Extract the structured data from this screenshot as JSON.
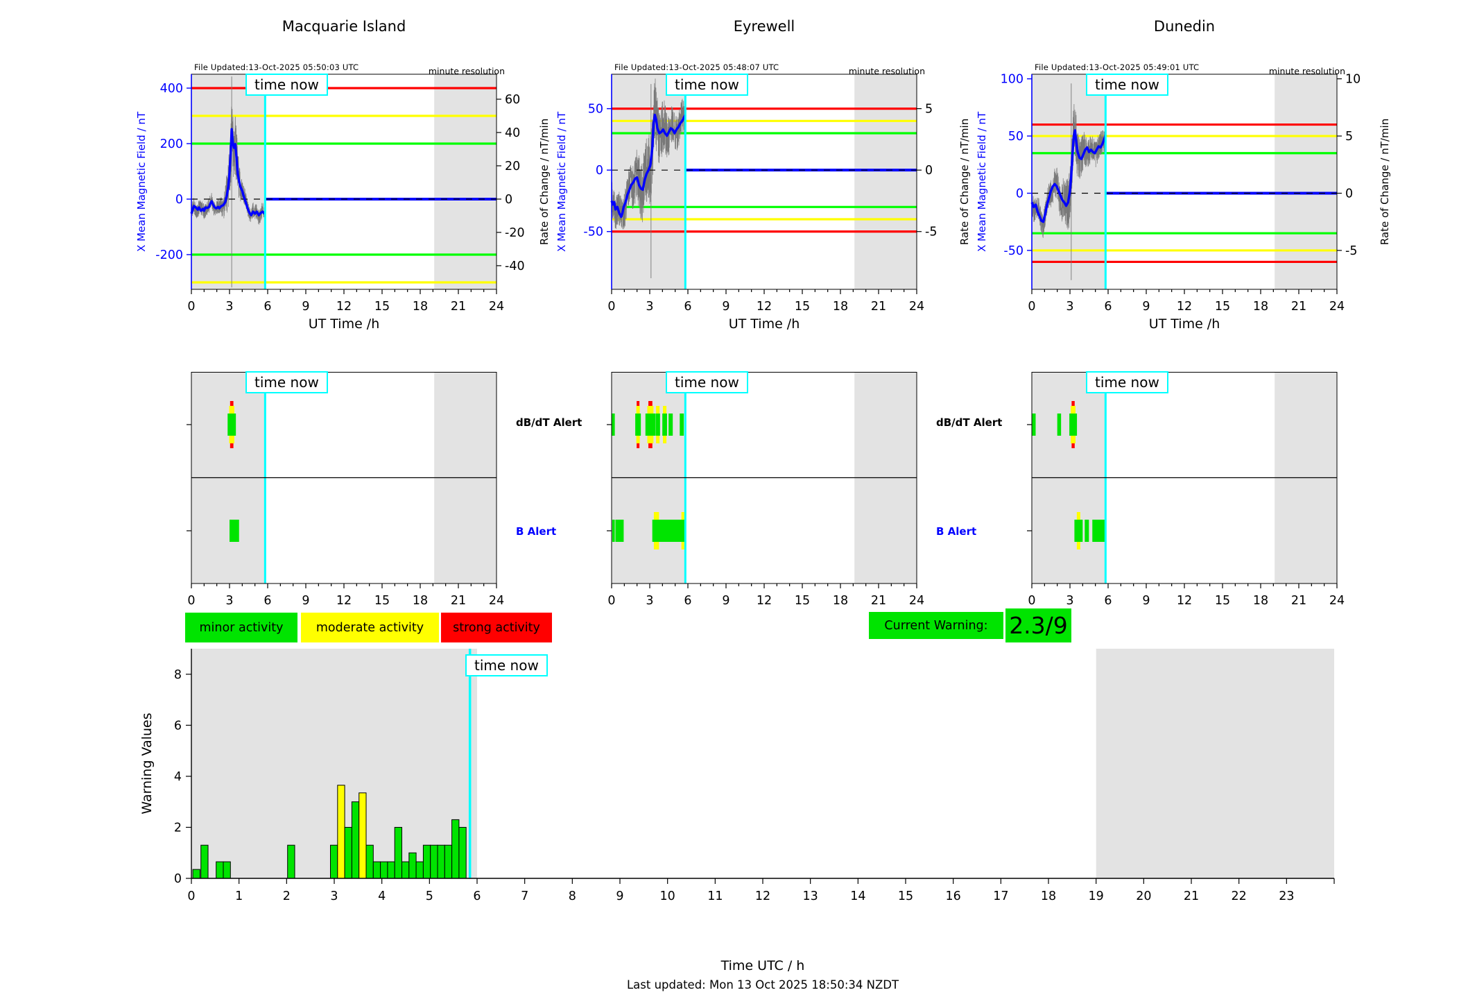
{
  "figure": {
    "time_now_label": "time now",
    "last_updated": "Last updated: Mon 13 Oct 2025 18:50:34 NZDT",
    "alert_labels": {
      "dbdt": "dB/dT Alert",
      "b": "B Alert"
    },
    "legend": [
      {
        "label": "minor activity",
        "color": "#00e400"
      },
      {
        "label": "moderate activity",
        "color": "#ffff00"
      },
      {
        "label": "strong activity",
        "color": "#ff0000"
      }
    ],
    "current_warning": {
      "label": "Current Warning:",
      "value": "2.3/9",
      "color": "#00e400"
    }
  },
  "colors": {
    "minor_green": "#00e400",
    "moderate_yellow": "#ffff00",
    "strong_red": "#ff0000",
    "data_blue": "#0000ff",
    "time_now_cyan": "#00ffff",
    "shaded_band": "#e3e3e3",
    "raw_trace_gray": "#787878"
  },
  "chart_data": [
    {
      "type": "line",
      "title": "Macquarie Island",
      "file_updated": "File Updated:13-Oct-2025 05:50:03 UTC",
      "resolution_note": "minute resolution",
      "xlabel": "UT Time /h",
      "ylabel_left": "X Mean Magnetic Field / nT",
      "ylabel_right": "Rate of Change / nT/min",
      "xlim": [
        0,
        24
      ],
      "xticks": [
        0,
        3,
        6,
        9,
        12,
        15,
        18,
        21,
        24
      ],
      "ylim_left": [
        -325,
        450
      ],
      "yticks_left": [
        400,
        200,
        0,
        -200
      ],
      "ylim_right": [
        -54.2,
        75
      ],
      "yticks_right": [
        60,
        40,
        20,
        0,
        -20,
        -40
      ],
      "time_now": 5.8,
      "shaded_bands": [
        [
          0,
          5.8
        ],
        [
          19.1,
          24
        ]
      ],
      "thresholds": [
        {
          "value": 400,
          "color": "#ff0000"
        },
        {
          "value": 300,
          "color": "#ffff00"
        },
        {
          "value": 200,
          "color": "#00ff00"
        },
        {
          "value": -200,
          "color": "#00ff00"
        },
        {
          "value": -300,
          "color": "#ffff00"
        }
      ],
      "observed_blue": [
        [
          0,
          -52
        ],
        [
          0.1,
          -38
        ],
        [
          0.2,
          -25
        ],
        [
          0.35,
          -30
        ],
        [
          0.5,
          -38
        ],
        [
          0.6,
          -30
        ],
        [
          0.75,
          -42
        ],
        [
          0.9,
          -35
        ],
        [
          1.0,
          -42
        ],
        [
          1.1,
          -30
        ],
        [
          1.25,
          -32
        ],
        [
          1.4,
          -28
        ],
        [
          1.5,
          -15
        ],
        [
          1.6,
          -8
        ],
        [
          1.7,
          -18
        ],
        [
          1.8,
          -28
        ],
        [
          1.95,
          -33
        ],
        [
          2.1,
          -28
        ],
        [
          2.2,
          -33
        ],
        [
          2.35,
          -25
        ],
        [
          2.5,
          -22
        ],
        [
          2.65,
          -12
        ],
        [
          2.8,
          15
        ],
        [
          2.9,
          45
        ],
        [
          3.0,
          95
        ],
        [
          3.1,
          170
        ],
        [
          3.17,
          252
        ],
        [
          3.25,
          205
        ],
        [
          3.35,
          185
        ],
        [
          3.45,
          198
        ],
        [
          3.55,
          150
        ],
        [
          3.65,
          90
        ],
        [
          3.75,
          65
        ],
        [
          3.85,
          45
        ],
        [
          4.0,
          30
        ],
        [
          4.1,
          12
        ],
        [
          4.25,
          -8
        ],
        [
          4.4,
          -30
        ],
        [
          4.55,
          -48
        ],
        [
          4.7,
          -58
        ],
        [
          4.85,
          -45
        ],
        [
          5.0,
          -52
        ],
        [
          5.15,
          -45
        ],
        [
          5.3,
          -58
        ],
        [
          5.45,
          -50
        ],
        [
          5.6,
          -45
        ],
        [
          5.7,
          -50
        ],
        [
          5.8,
          -46
        ]
      ],
      "forecast_value": 0,
      "noise": {
        "seed": 1,
        "amp": 28,
        "burst_amp": 95,
        "burst_center": 3.25,
        "burst_width": 0.55,
        "spike_t": 3.17,
        "spike_range": [
          -318,
          442
        ]
      }
    },
    {
      "type": "line",
      "title": "Eyrewell",
      "file_updated": "File Updated:13-Oct-2025 05:48:07 UTC",
      "resolution_note": "minute resolution",
      "xlabel": "UT Time /h",
      "ylabel_left": "X Mean Magnetic Field / nT",
      "ylabel_right": "Rate of Change / nT/min",
      "xlim": [
        0,
        24
      ],
      "xticks": [
        0,
        3,
        6,
        9,
        12,
        15,
        18,
        21,
        24
      ],
      "ylim_left": [
        -97,
        78
      ],
      "yticks_left": [
        50,
        0,
        -50
      ],
      "ylim_right": [
        -9.7,
        7.8
      ],
      "yticks_right": [
        5,
        0,
        -5
      ],
      "time_now": 5.8,
      "shaded_bands": [
        [
          0,
          5.8
        ],
        [
          19.1,
          24
        ]
      ],
      "thresholds": [
        {
          "value": 50,
          "color": "#ff0000"
        },
        {
          "value": 40,
          "color": "#ffff00"
        },
        {
          "value": 30,
          "color": "#00ff00"
        },
        {
          "value": -30,
          "color": "#00ff00"
        },
        {
          "value": -40,
          "color": "#ffff00"
        },
        {
          "value": -50,
          "color": "#ff0000"
        }
      ],
      "observed_blue": [
        [
          0,
          -25
        ],
        [
          0.1,
          -28
        ],
        [
          0.2,
          -26
        ],
        [
          0.3,
          -32
        ],
        [
          0.45,
          -30
        ],
        [
          0.6,
          -35
        ],
        [
          0.75,
          -38
        ],
        [
          0.85,
          -35
        ],
        [
          0.95,
          -30
        ],
        [
          1.1,
          -26
        ],
        [
          1.25,
          -20
        ],
        [
          1.4,
          -16
        ],
        [
          1.55,
          -12
        ],
        [
          1.7,
          -10
        ],
        [
          1.85,
          -7
        ],
        [
          2.0,
          -6
        ],
        [
          2.15,
          -12
        ],
        [
          2.3,
          -15
        ],
        [
          2.45,
          -16
        ],
        [
          2.6,
          -8
        ],
        [
          2.75,
          -3
        ],
        [
          2.9,
          0
        ],
        [
          3.05,
          4
        ],
        [
          3.2,
          18
        ],
        [
          3.3,
          38
        ],
        [
          3.4,
          45
        ],
        [
          3.5,
          41
        ],
        [
          3.6,
          34
        ],
        [
          3.75,
          30
        ],
        [
          3.9,
          31
        ],
        [
          4.05,
          33
        ],
        [
          4.2,
          30
        ],
        [
          4.35,
          28
        ],
        [
          4.5,
          31
        ],
        [
          4.65,
          34
        ],
        [
          4.8,
          33
        ],
        [
          4.95,
          30
        ],
        [
          5.1,
          33
        ],
        [
          5.25,
          35
        ],
        [
          5.4,
          38
        ],
        [
          5.55,
          40
        ],
        [
          5.7,
          43
        ],
        [
          5.8,
          45
        ]
      ],
      "forecast_value": 0,
      "noise": {
        "seed": 2,
        "amp": 14,
        "burst_amp": 16,
        "burst_center": 3.1,
        "burst_width": 1.2,
        "spike_t": 3.1,
        "spike_range": [
          -88,
          70
        ]
      }
    },
    {
      "type": "line",
      "title": "Dunedin",
      "file_updated": "File Updated:13-Oct-2025 05:49:01 UTC",
      "resolution_note": "minute resolution",
      "xlabel": "UT Time /h",
      "ylabel_left": "X Mean Magnetic Field / nT",
      "ylabel_right": "Rate of Change / nT/min",
      "xlim": [
        0,
        24
      ],
      "xticks": [
        0,
        3,
        6,
        9,
        12,
        15,
        18,
        21,
        24
      ],
      "ylim_left": [
        -84,
        104
      ],
      "yticks_left": [
        100,
        50,
        0,
        -50
      ],
      "ylim_right": [
        -8.4,
        10.4
      ],
      "yticks_right": [
        10,
        5,
        0,
        -5
      ],
      "time_now": 5.8,
      "shaded_bands": [
        [
          0,
          5.8
        ],
        [
          19.1,
          24
        ]
      ],
      "thresholds": [
        {
          "value": 60,
          "color": "#ff0000"
        },
        {
          "value": 50,
          "color": "#ffff00"
        },
        {
          "value": 35,
          "color": "#00ff00"
        },
        {
          "value": -35,
          "color": "#00ff00"
        },
        {
          "value": -50,
          "color": "#ffff00"
        },
        {
          "value": -60,
          "color": "#ff0000"
        }
      ],
      "observed_blue": [
        [
          0,
          -8
        ],
        [
          0.15,
          -12
        ],
        [
          0.3,
          -10
        ],
        [
          0.45,
          -16
        ],
        [
          0.6,
          -20
        ],
        [
          0.75,
          -24
        ],
        [
          0.9,
          -25
        ],
        [
          1.05,
          -18
        ],
        [
          1.2,
          -10
        ],
        [
          1.35,
          -4
        ],
        [
          1.5,
          2
        ],
        [
          1.65,
          6
        ],
        [
          1.8,
          8
        ],
        [
          1.95,
          6
        ],
        [
          2.1,
          2
        ],
        [
          2.25,
          -2
        ],
        [
          2.4,
          -6
        ],
        [
          2.55,
          -8
        ],
        [
          2.7,
          -11
        ],
        [
          2.85,
          -8
        ],
        [
          3.0,
          2
        ],
        [
          3.1,
          15
        ],
        [
          3.2,
          35
        ],
        [
          3.3,
          50
        ],
        [
          3.4,
          55
        ],
        [
          3.5,
          44
        ],
        [
          3.6,
          36
        ],
        [
          3.75,
          31
        ],
        [
          3.9,
          30
        ],
        [
          4.05,
          34
        ],
        [
          4.2,
          38
        ],
        [
          4.35,
          40
        ],
        [
          4.5,
          36
        ],
        [
          4.65,
          38
        ],
        [
          4.8,
          36
        ],
        [
          4.95,
          35
        ],
        [
          5.1,
          38
        ],
        [
          5.25,
          41
        ],
        [
          5.4,
          40
        ],
        [
          5.55,
          43
        ],
        [
          5.65,
          46
        ],
        [
          5.8,
          51
        ]
      ],
      "forecast_value": 0,
      "noise": {
        "seed": 3,
        "amp": 11,
        "burst_amp": 14,
        "burst_center": 3.1,
        "burst_width": 1.0,
        "spike_t": 3.1,
        "spike_range": [
          -76,
          96
        ]
      }
    },
    {
      "type": "alert",
      "station": "Macquarie Island",
      "xlim": [
        0,
        24
      ],
      "xticks": [
        0,
        3,
        6,
        9,
        12,
        15,
        18,
        21,
        24
      ],
      "time_now": 5.8,
      "shaded_bands": [
        [
          0,
          5.8
        ],
        [
          19.1,
          24
        ]
      ],
      "rows": {
        "dbdt": [
          {
            "t0": 2.85,
            "t1": 3.5,
            "level": 3
          }
        ],
        "b": [
          {
            "t0": 3.0,
            "t1": 3.75,
            "level": 1
          }
        ]
      }
    },
    {
      "type": "alert",
      "station": "Eyrewell",
      "xlim": [
        0,
        24
      ],
      "xticks": [
        0,
        3,
        6,
        9,
        12,
        15,
        18,
        21,
        24
      ],
      "time_now": 5.8,
      "shaded_bands": [
        [
          0,
          5.8
        ],
        [
          19.1,
          24
        ]
      ],
      "rows": {
        "dbdt": [
          {
            "t0": 0.0,
            "t1": 0.25,
            "level": 1
          },
          {
            "t0": 1.86,
            "t1": 2.3,
            "level": 3
          },
          {
            "t0": 2.66,
            "t1": 3.44,
            "level": 3
          },
          {
            "t0": 3.46,
            "t1": 3.81,
            "level": 2
          },
          {
            "t0": 3.99,
            "t1": 4.36,
            "level": 2
          },
          {
            "t0": 4.48,
            "t1": 4.81,
            "level": 1
          },
          {
            "t0": 5.36,
            "t1": 5.68,
            "level": 1
          }
        ],
        "b": [
          {
            "t0": 3.2,
            "t1": 3.85,
            "level": 2
          },
          {
            "t0": 5.45,
            "t1": 5.8,
            "level": 2
          },
          {
            "t0": 3.3,
            "t1": 5.83,
            "level": 1
          },
          {
            "t0": 0.05,
            "t1": 0.25,
            "level": 1
          },
          {
            "t0": 0.3,
            "t1": 0.95,
            "level": 1
          }
        ]
      }
    },
    {
      "type": "alert",
      "station": "Dunedin",
      "xlim": [
        0,
        24
      ],
      "xticks": [
        0,
        3,
        6,
        9,
        12,
        15,
        18,
        21,
        24
      ],
      "time_now": 5.8,
      "shaded_bands": [
        [
          0,
          5.8
        ],
        [
          19.1,
          24
        ]
      ],
      "rows": {
        "dbdt": [
          {
            "t0": 0.0,
            "t1": 0.3,
            "level": 1
          },
          {
            "t0": 2.0,
            "t1": 2.3,
            "level": 1
          },
          {
            "t0": 2.95,
            "t1": 3.55,
            "level": 3
          }
        ],
        "b": [
          {
            "t0": 3.46,
            "t1": 3.89,
            "level": 2
          },
          {
            "t0": 3.35,
            "t1": 4.0,
            "level": 1
          },
          {
            "t0": 4.16,
            "t1": 4.49,
            "level": 1
          },
          {
            "t0": 4.76,
            "t1": 5.83,
            "level": 1
          }
        ]
      }
    },
    {
      "type": "bar",
      "ylabel": "Warning Values",
      "xlabel": "Time UTC / h",
      "xlim": [
        0,
        24
      ],
      "xticks": [
        0,
        1,
        2,
        3,
        4,
        5,
        6,
        7,
        8,
        9,
        10,
        11,
        12,
        13,
        14,
        15,
        16,
        17,
        18,
        19,
        20,
        21,
        22,
        23
      ],
      "ylim": [
        0,
        9
      ],
      "yticks": [
        0,
        2,
        4,
        6,
        8
      ],
      "time_now": 5.85,
      "shaded_bands": [
        [
          0,
          6
        ],
        [
          19,
          24
        ]
      ],
      "bar_width": 0.15,
      "bars": [
        {
          "t": 0.03,
          "value": 0.35,
          "level": "minor"
        },
        {
          "t": 0.2,
          "value": 1.3,
          "level": "minor"
        },
        {
          "t": 0.52,
          "value": 0.65,
          "level": "minor"
        },
        {
          "t": 0.67,
          "value": 0.65,
          "level": "minor"
        },
        {
          "t": 2.02,
          "value": 1.3,
          "level": "minor"
        },
        {
          "t": 2.92,
          "value": 1.3,
          "level": "minor"
        },
        {
          "t": 3.07,
          "value": 3.65,
          "level": "moderate"
        },
        {
          "t": 3.22,
          "value": 2.0,
          "level": "minor"
        },
        {
          "t": 3.37,
          "value": 3.0,
          "level": "minor"
        },
        {
          "t": 3.52,
          "value": 3.35,
          "level": "moderate"
        },
        {
          "t": 3.67,
          "value": 1.3,
          "level": "minor"
        },
        {
          "t": 3.82,
          "value": 0.65,
          "level": "minor"
        },
        {
          "t": 3.97,
          "value": 0.65,
          "level": "minor"
        },
        {
          "t": 4.12,
          "value": 0.65,
          "level": "minor"
        },
        {
          "t": 4.27,
          "value": 2.0,
          "level": "minor"
        },
        {
          "t": 4.42,
          "value": 0.65,
          "level": "minor"
        },
        {
          "t": 4.57,
          "value": 1.0,
          "level": "minor"
        },
        {
          "t": 4.72,
          "value": 0.65,
          "level": "minor"
        },
        {
          "t": 4.87,
          "value": 1.3,
          "level": "minor"
        },
        {
          "t": 5.02,
          "value": 1.3,
          "level": "minor"
        },
        {
          "t": 5.17,
          "value": 1.3,
          "level": "minor"
        },
        {
          "t": 5.32,
          "value": 1.3,
          "level": "minor"
        },
        {
          "t": 5.47,
          "value": 2.3,
          "level": "minor"
        },
        {
          "t": 5.62,
          "value": 2.0,
          "level": "minor"
        }
      ]
    }
  ]
}
